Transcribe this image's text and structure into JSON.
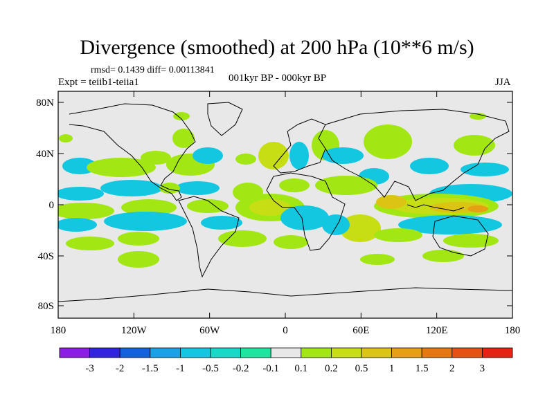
{
  "title": "Divergence (smoothed) at 200 hPa (10**6 m/s)",
  "stats": "rmsd= 0.1439 diff= 0.00113841",
  "experiment": "Expt = teiib1-teiia1",
  "period": "001kyr BP - 000kyr BP",
  "season": "JJA",
  "axes": {
    "x_ticks": [
      "180",
      "120W",
      "60W",
      "0",
      "60E",
      "120E",
      "180"
    ],
    "y_ticks": [
      "80N",
      "40N",
      "0",
      "40S",
      "80S"
    ]
  },
  "colorbar": {
    "colors": [
      "#8a1ee6",
      "#3223e0",
      "#1560df",
      "#1aa2e6",
      "#14c7e0",
      "#17d9c8",
      "#1ee6a0",
      "#e8e8e8",
      "#a2e614",
      "#c7de14",
      "#dcc414",
      "#e6a014",
      "#e67814",
      "#e65014",
      "#e62214"
    ],
    "labels": [
      "-3",
      "-2",
      "-1.5",
      "-1",
      "-0.5",
      "-0.2",
      "-0.1",
      "0.1",
      "0.2",
      "0.5",
      "1",
      "1.5",
      "2",
      "3"
    ]
  }
}
